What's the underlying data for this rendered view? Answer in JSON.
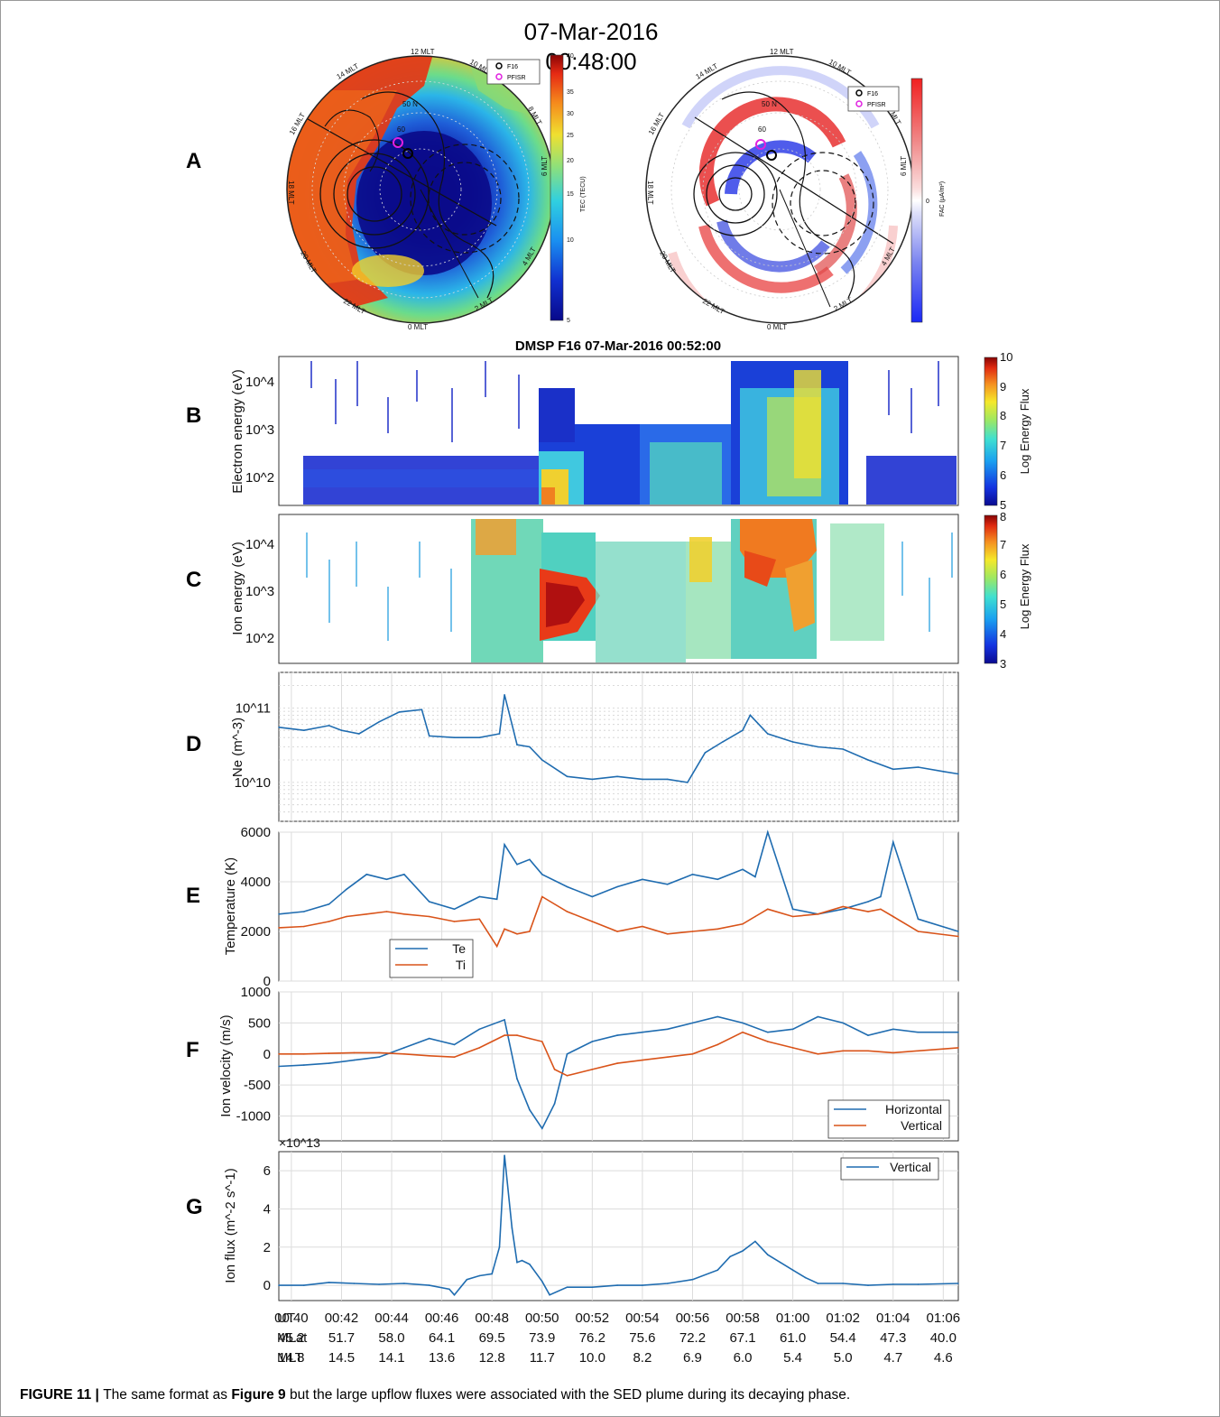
{
  "header": {
    "date": "07-Mar-2016",
    "time": "00:48:00"
  },
  "panel_letters": [
    "A",
    "B",
    "C",
    "D",
    "E",
    "F",
    "G"
  ],
  "maps": {
    "mlt_labels_left": [
      "12 MLT",
      "14 MLT",
      "16 MLT",
      "18 MLT",
      "20 MLT",
      "22 MLT",
      "0 MLT",
      "2 MLT",
      "4 MLT",
      "6 MLT",
      "8 MLT",
      "10 MLT"
    ],
    "mlt_labels_right": [
      "12 MLT",
      "14 MLT",
      "16 MLT",
      "18 MLT",
      "20 MLT",
      "22 MLT",
      "0 MLT",
      "2 MLT",
      "4 MLT",
      "6 MLT",
      "8 MLT",
      "10 MLT"
    ],
    "lat_labels": [
      "50 N",
      "60"
    ],
    "legend": [
      "F16",
      "PFISR"
    ],
    "tec_colorbar": {
      "label": "TEC (TECU)",
      "ticks": [
        "40",
        "35",
        "30",
        "25",
        "20",
        "15",
        "10",
        "5"
      ]
    },
    "fac_colorbar": {
      "label": "FAC (μA/m²)",
      "ticks": [
        "0"
      ]
    },
    "colors": {
      "f16_marker": "#000000",
      "pfisr_marker": "#e020e0"
    }
  },
  "caption": {
    "prefix": "FIGURE 11 | ",
    "text_1": "The same format as ",
    "ref": "Figure 9",
    "text_2": " but the large upflow fluxes were associated with the SED plume during its decaying phase."
  },
  "chart_data": [
    {
      "type": "heatmap",
      "panel": "B",
      "title": "DMSP F16 07-Mar-2016 00:52:00",
      "ylabel": "Electron energy (eV)",
      "yscale": "log",
      "yticks": [
        "10^2",
        "10^3",
        "10^4"
      ],
      "colorbar": {
        "label": "Log Energy Flux",
        "range": [
          5,
          10
        ],
        "ticks": [
          "5",
          "6",
          "7",
          "8",
          "9",
          "10"
        ]
      },
      "features": [
        {
          "x_range": [
            "00:39:30",
            "00:48:40"
          ],
          "energy": "30-150 eV",
          "level": 5.5
        },
        {
          "x_range": [
            "00:48:40",
            "00:50:00"
          ],
          "energy": "30-1000 eV",
          "level": 8.5
        },
        {
          "x_range": [
            "00:52:30",
            "01:02:30"
          ],
          "energy": "30-30000 eV",
          "level": 7.5
        }
      ]
    },
    {
      "type": "heatmap",
      "panel": "C",
      "ylabel": "Ion energy (eV)",
      "yscale": "log",
      "yticks": [
        "10^2",
        "10^3",
        "10^4"
      ],
      "colorbar": {
        "label": "Log Energy Flux",
        "range": [
          3,
          8
        ],
        "ticks": [
          "3",
          "4",
          "5",
          "6",
          "7",
          "8"
        ]
      },
      "features": [
        {
          "x_range": [
            "00:47:00",
            "00:48:40"
          ],
          "energy": "30-30000 eV",
          "level": 5.5
        },
        {
          "x_range": [
            "00:48:40",
            "00:50:10"
          ],
          "energy": "100-5000 eV",
          "level": 7.5
        },
        {
          "x_range": [
            "00:57:00",
            "01:00:30"
          ],
          "energy": "300-30000 eV",
          "level": 7.0
        }
      ]
    },
    {
      "type": "line",
      "panel": "D",
      "ylabel": "Ne (m^-3)",
      "yscale": "log",
      "ylim": [
        3000000000,
        300000000000
      ],
      "yticks": [
        "10^10",
        "10^11"
      ],
      "x": [
        39.5,
        40.5,
        41.5,
        42,
        42.7,
        43.5,
        44.3,
        45.2,
        45.5,
        46.5,
        47.5,
        48.3,
        48.5,
        48.8,
        49,
        49.5,
        50,
        51,
        52,
        53,
        54,
        55,
        55.8,
        56.5,
        57.2,
        58,
        58.3,
        59,
        60,
        61,
        62,
        63,
        64,
        65,
        66,
        66.6
      ],
      "series": [
        {
          "name": "Ne",
          "color": "#1f6cb0",
          "values": [
            55000000000.0,
            50000000000.0,
            58000000000.0,
            50000000000.0,
            45000000000.0,
            65000000000.0,
            88000000000.0,
            95000000000.0,
            42000000000.0,
            40000000000.0,
            40000000000.0,
            45000000000.0,
            150000000000.0,
            60000000000.0,
            32000000000.0,
            30000000000.0,
            20000000000.0,
            12000000000.0,
            11000000000.0,
            12000000000.0,
            11000000000.0,
            11000000000.0,
            10000000000.0,
            25000000000.0,
            35000000000.0,
            50000000000.0,
            80000000000.0,
            45000000000.0,
            35000000000.0,
            30000000000.0,
            28000000000.0,
            20000000000.0,
            15000000000.0,
            16000000000.0,
            14000000000.0,
            13000000000.0
          ]
        }
      ]
    },
    {
      "type": "line",
      "panel": "E",
      "ylabel": "Temperature (K)",
      "ylim": [
        0,
        6000
      ],
      "yticks": [
        "0",
        "2000",
        "4000",
        "6000"
      ],
      "legend": [
        "Te",
        "Ti"
      ],
      "x": [
        39.5,
        40.5,
        41.5,
        42.2,
        43,
        43.8,
        44.5,
        45.5,
        46.5,
        47.5,
        48.2,
        48.5,
        49,
        49.5,
        50,
        51,
        52,
        53,
        54,
        55,
        56,
        57,
        58,
        58.5,
        59,
        60,
        61,
        62,
        63,
        63.5,
        64,
        65,
        66.6
      ],
      "series": [
        {
          "name": "Te",
          "color": "#1f6cb0",
          "values": [
            2700,
            2800,
            3100,
            3700,
            4300,
            4100,
            4300,
            3200,
            2900,
            3400,
            3300,
            5500,
            4700,
            4900,
            4300,
            3800,
            3400,
            3800,
            4100,
            3900,
            4300,
            4100,
            4500,
            4200,
            6000,
            2900,
            2700,
            2900,
            3200,
            3400,
            5600,
            2500,
            2000
          ]
        },
        {
          "name": "Ti",
          "color": "#d95319",
          "values": [
            2150,
            2200,
            2400,
            2600,
            2700,
            2800,
            2700,
            2600,
            2400,
            2500,
            1400,
            2100,
            1900,
            2000,
            3400,
            2800,
            2400,
            2000,
            2200,
            1900,
            2000,
            2100,
            2300,
            2600,
            2900,
            2600,
            2700,
            3000,
            2800,
            2900,
            2600,
            2000,
            1800
          ]
        }
      ]
    },
    {
      "type": "line",
      "panel": "F",
      "ylabel": "Ion velocity (m/s)",
      "ylim": [
        -1400,
        1000
      ],
      "yticks": [
        "-1000",
        "-500",
        "0",
        "500",
        "1000"
      ],
      "legend": [
        "Horizontal",
        "Vertical"
      ],
      "x": [
        39.5,
        40.5,
        41.5,
        42.5,
        43.5,
        44.5,
        45.5,
        46.5,
        47.5,
        48.5,
        49,
        49.5,
        50,
        50.5,
        51,
        52,
        53,
        54,
        55,
        56,
        57,
        58,
        59,
        60,
        61,
        62,
        63,
        64,
        65,
        66.6
      ],
      "series": [
        {
          "name": "Horizontal",
          "color": "#1f6cb0",
          "values": [
            -200,
            -180,
            -150,
            -100,
            -50,
            100,
            250,
            150,
            400,
            550,
            -400,
            -900,
            -1200,
            -800,
            0,
            200,
            300,
            350,
            400,
            500,
            600,
            500,
            350,
            400,
            600,
            500,
            300,
            400,
            350,
            350
          ]
        },
        {
          "name": "Vertical",
          "color": "#d95319",
          "values": [
            0,
            0,
            10,
            20,
            20,
            0,
            -30,
            -50,
            100,
            300,
            300,
            250,
            200,
            -250,
            -350,
            -250,
            -150,
            -100,
            -50,
            0,
            150,
            350,
            200,
            100,
            0,
            50,
            50,
            20,
            50,
            100
          ]
        }
      ]
    },
    {
      "type": "line",
      "panel": "G",
      "ylabel": "Ion flux (m^-2 s^-1)",
      "multiplier": "×10^13",
      "ylim": [
        -0.8,
        7
      ],
      "yticks": [
        "0",
        "2",
        "4",
        "6"
      ],
      "legend": [
        "Vertical"
      ],
      "x": [
        39.5,
        40.5,
        41.5,
        42.5,
        43.5,
        44.5,
        45.5,
        46.3,
        46.5,
        47,
        47.5,
        48,
        48.3,
        48.5,
        48.8,
        49,
        49.2,
        49.5,
        50,
        50.3,
        51,
        52,
        53,
        54,
        55,
        56,
        57,
        57.5,
        58,
        58.5,
        59,
        59.5,
        60,
        60.5,
        61,
        62,
        63,
        64,
        65,
        66.6
      ],
      "series": [
        {
          "name": "Vertical",
          "color": "#1f6cb0",
          "values": [
            0,
            0,
            0.15,
            0.1,
            0.05,
            0.1,
            0,
            -0.2,
            -0.5,
            0.3,
            0.5,
            0.6,
            2.0,
            6.8,
            3.0,
            1.2,
            1.3,
            1.1,
            0.2,
            -0.5,
            -0.1,
            -0.1,
            0,
            0,
            0.1,
            0.3,
            0.8,
            1.5,
            1.8,
            2.3,
            1.6,
            1.2,
            0.8,
            0.4,
            0.1,
            0.1,
            0,
            0.05,
            0.05,
            0.1
          ]
        }
      ]
    }
  ],
  "x_axis": {
    "row_labels": [
      "UT",
      "MLat",
      "MLT"
    ],
    "ut": [
      "00:40",
      "00:42",
      "00:44",
      "00:46",
      "00:48",
      "00:50",
      "00:52",
      "00:54",
      "00:56",
      "00:58",
      "01:00",
      "01:02",
      "01:04",
      "01:06"
    ],
    "mlat": [
      "45.2",
      "51.7",
      "58.0",
      "64.1",
      "69.5",
      "73.9",
      "76.2",
      "75.6",
      "72.2",
      "67.1",
      "61.0",
      "54.4",
      "47.3",
      "40.0"
    ],
    "mlt": [
      "14.8",
      "14.5",
      "14.1",
      "13.6",
      "12.8",
      "11.7",
      "10.0",
      "8.2",
      "6.9",
      "6.0",
      "5.4",
      "5.0",
      "4.7",
      "4.6"
    ]
  }
}
